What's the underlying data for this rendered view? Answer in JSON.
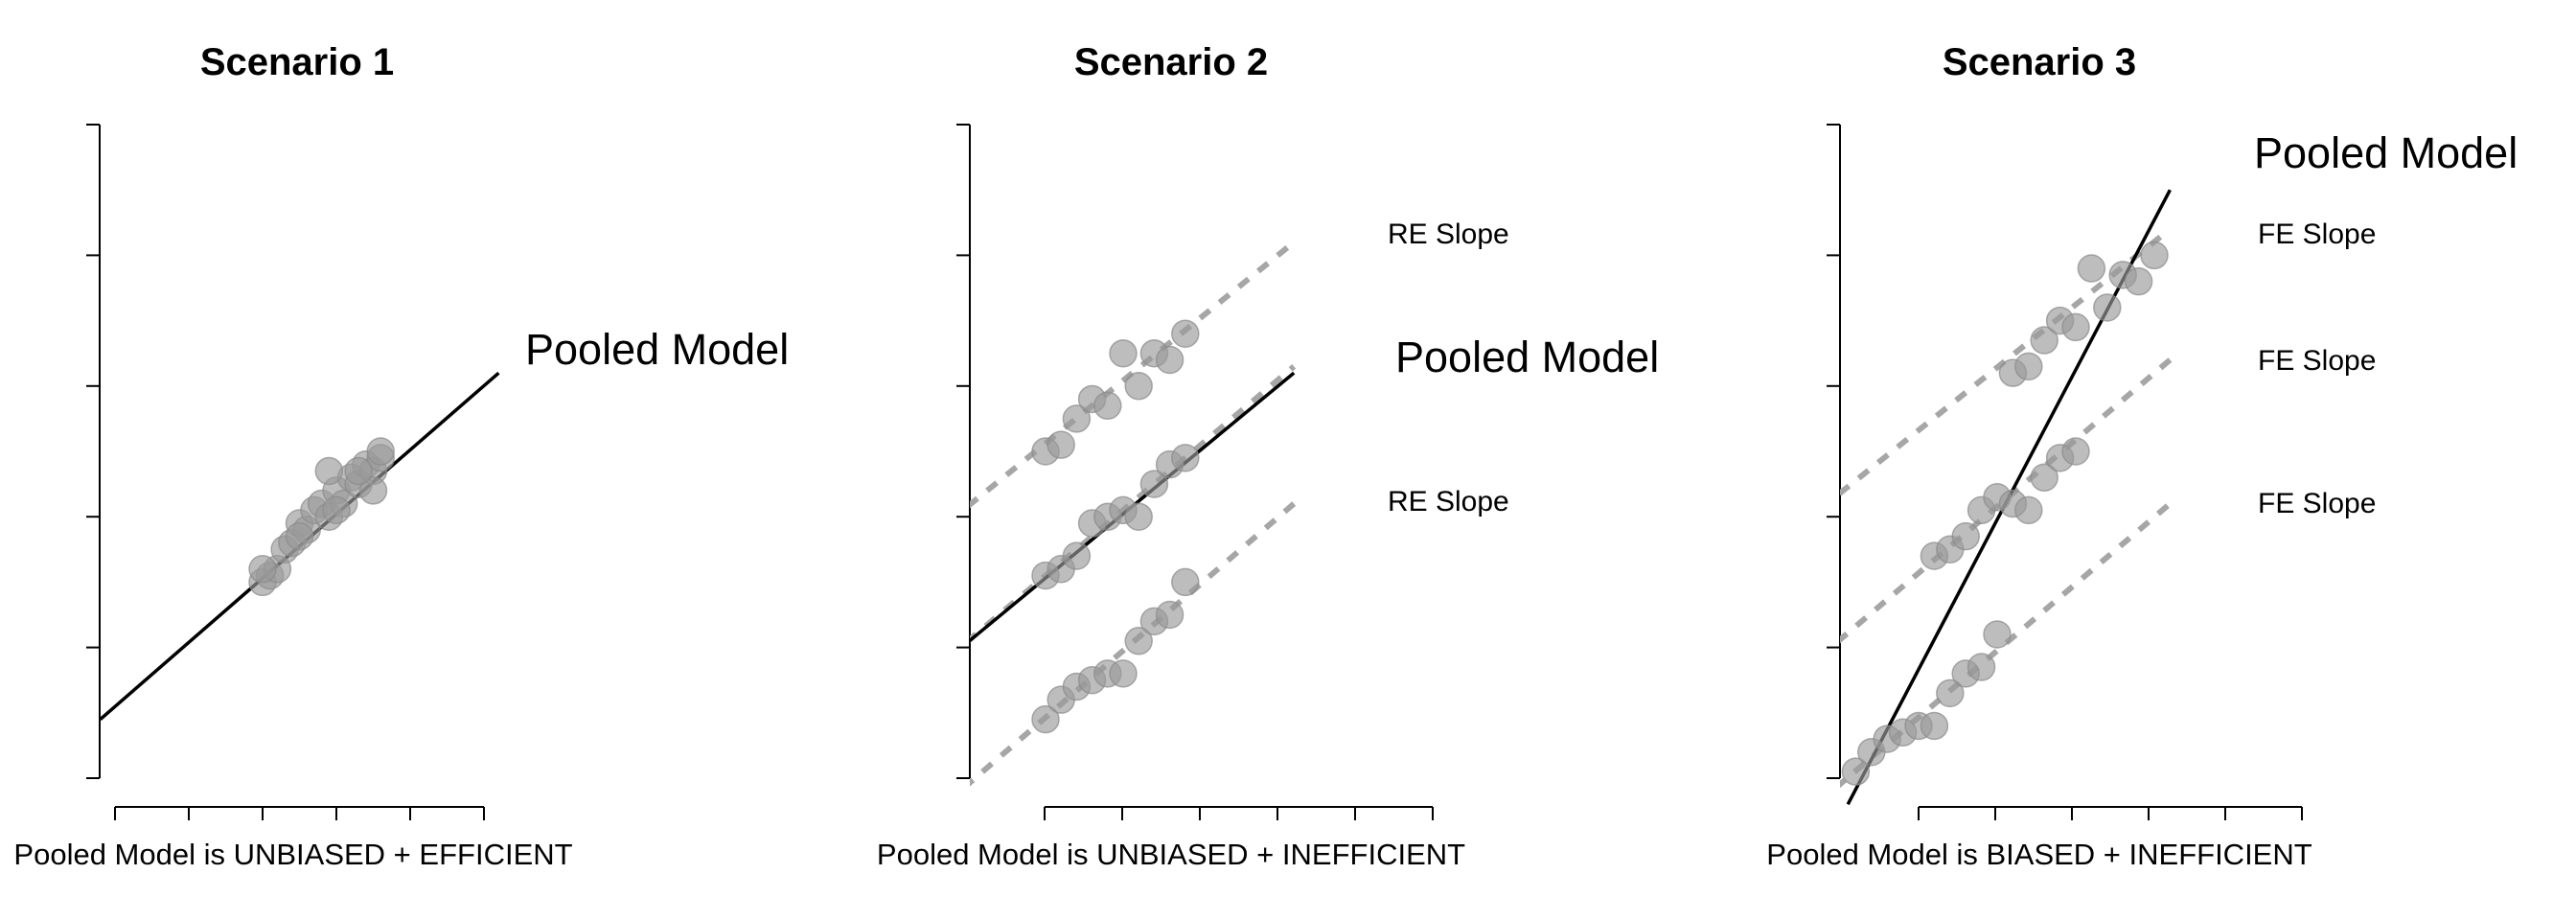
{
  "chart_data": [
    {
      "type": "scatter",
      "title": "Scenario 1",
      "xlabel": "Pooled Model is UNBIASED + EFFICIENT",
      "ylabel": "",
      "xlim": [
        0,
        5
      ],
      "ylim": [
        0,
        5
      ],
      "xticks": [
        0,
        1,
        2,
        3,
        4,
        5
      ],
      "yticks": [
        0,
        1,
        2,
        3,
        4,
        5
      ],
      "lines": [
        {
          "name": "Pooled Model",
          "kind": "pooled",
          "x1": -0.2,
          "y1": 0.45,
          "x2": 5.2,
          "y2": 3.1
        }
      ],
      "points": [
        [
          2.0,
          1.5
        ],
        [
          2.1,
          1.55
        ],
        [
          2.2,
          1.6
        ],
        [
          2.3,
          1.75
        ],
        [
          2.4,
          1.8
        ],
        [
          2.5,
          1.95
        ],
        [
          2.6,
          1.9
        ],
        [
          2.7,
          2.05
        ],
        [
          2.8,
          2.1
        ],
        [
          2.9,
          2.0
        ],
        [
          3.0,
          2.2
        ],
        [
          3.1,
          2.1
        ],
        [
          3.2,
          2.3
        ],
        [
          3.3,
          2.25
        ],
        [
          3.4,
          2.4
        ],
        [
          3.5,
          2.35
        ],
        [
          3.6,
          2.45
        ],
        [
          3.5,
          2.2
        ],
        [
          3.0,
          2.05
        ],
        [
          2.9,
          2.35
        ],
        [
          2.5,
          1.85
        ],
        [
          3.6,
          2.5
        ],
        [
          2.0,
          1.6
        ],
        [
          3.3,
          2.35
        ]
      ]
    },
    {
      "type": "scatter",
      "title": "Scenario 2",
      "xlabel": "Pooled Model is UNBIASED + INEFFICIENT",
      "ylabel": "",
      "xlim": [
        0,
        5
      ],
      "ylim": [
        0,
        5
      ],
      "xticks": [
        0,
        1,
        2,
        3,
        4,
        5
      ],
      "yticks": [
        0,
        1,
        2,
        3,
        4,
        5
      ],
      "lines": [
        {
          "name": "RE Slope",
          "kind": "slope",
          "x1": -1.0,
          "y1": 1.6,
          "x2": 4.2,
          "y2": 4.1
        },
        {
          "name": "Pooled Model",
          "kind": "pooled",
          "x1": -1.0,
          "y1": 0.55,
          "x2": 4.2,
          "y2": 3.1
        },
        {
          "name": "",
          "kind": "slope",
          "x1": -1.0,
          "y1": 0.55,
          "x2": 4.2,
          "y2": 3.15
        },
        {
          "name": "RE Slope",
          "kind": "slope",
          "x1": -0.3,
          "y1": -0.2,
          "x2": 4.2,
          "y2": 2.1
        }
      ],
      "points": [
        [
          1.0,
          2.5
        ],
        [
          1.2,
          2.55
        ],
        [
          1.4,
          2.75
        ],
        [
          1.6,
          2.9
        ],
        [
          1.8,
          2.85
        ],
        [
          2.0,
          3.25
        ],
        [
          2.2,
          3.0
        ],
        [
          2.4,
          3.25
        ],
        [
          2.6,
          3.2
        ],
        [
          2.8,
          3.4
        ],
        [
          1.0,
          1.55
        ],
        [
          1.2,
          1.6
        ],
        [
          1.4,
          1.7
        ],
        [
          1.6,
          1.95
        ],
        [
          1.8,
          2.0
        ],
        [
          2.0,
          2.05
        ],
        [
          2.2,
          2.0
        ],
        [
          2.4,
          2.25
        ],
        [
          2.6,
          2.4
        ],
        [
          2.8,
          2.45
        ],
        [
          1.0,
          0.45
        ],
        [
          1.2,
          0.6
        ],
        [
          1.4,
          0.7
        ],
        [
          1.6,
          0.75
        ],
        [
          1.8,
          0.8
        ],
        [
          2.0,
          0.8
        ],
        [
          2.2,
          1.05
        ],
        [
          2.4,
          1.2
        ],
        [
          2.6,
          1.25
        ],
        [
          2.8,
          1.5
        ]
      ]
    },
    {
      "type": "scatter",
      "title": "Scenario 3",
      "xlabel": "Pooled Model is BIASED + INEFFICIENT",
      "ylabel": "",
      "xlim": [
        0,
        5
      ],
      "ylim": [
        0,
        5
      ],
      "xticks": [
        0,
        1,
        2,
        3,
        4,
        5
      ],
      "yticks": [
        0,
        1,
        2,
        3,
        4,
        5
      ],
      "lines": [
        {
          "name": "FE Slope",
          "kind": "slope",
          "x1": -1.0,
          "y1": 1.7,
          "x2": 4.2,
          "y2": 4.2
        },
        {
          "name": "FE Slope",
          "kind": "slope",
          "x1": -1.0,
          "y1": 0.55,
          "x2": 4.2,
          "y2": 3.2
        },
        {
          "name": "FE Slope",
          "kind": "slope",
          "x1": -0.3,
          "y1": -0.2,
          "x2": 4.2,
          "y2": 2.1
        },
        {
          "name": "Pooled Model",
          "kind": "pooled",
          "x1": 0.1,
          "y1": -0.2,
          "x2": 4.2,
          "y2": 4.5
        }
      ],
      "points": [
        [
          2.2,
          3.1
        ],
        [
          2.4,
          3.15
        ],
        [
          2.6,
          3.35
        ],
        [
          2.8,
          3.5
        ],
        [
          3.0,
          3.45
        ],
        [
          3.2,
          3.9
        ],
        [
          3.4,
          3.6
        ],
        [
          3.6,
          3.85
        ],
        [
          3.8,
          3.8
        ],
        [
          4.0,
          4.0
        ],
        [
          1.2,
          1.7
        ],
        [
          1.4,
          1.75
        ],
        [
          1.6,
          1.85
        ],
        [
          1.8,
          2.05
        ],
        [
          2.0,
          2.15
        ],
        [
          2.2,
          2.1
        ],
        [
          2.4,
          2.05
        ],
        [
          2.6,
          2.3
        ],
        [
          2.8,
          2.45
        ],
        [
          3.0,
          2.5
        ],
        [
          0.2,
          0.05
        ],
        [
          0.4,
          0.2
        ],
        [
          0.6,
          0.3
        ],
        [
          0.8,
          0.35
        ],
        [
          1.0,
          0.4
        ],
        [
          1.2,
          0.4
        ],
        [
          1.4,
          0.65
        ],
        [
          1.6,
          0.8
        ],
        [
          1.8,
          0.85
        ],
        [
          2.0,
          1.1
        ]
      ]
    }
  ]
}
